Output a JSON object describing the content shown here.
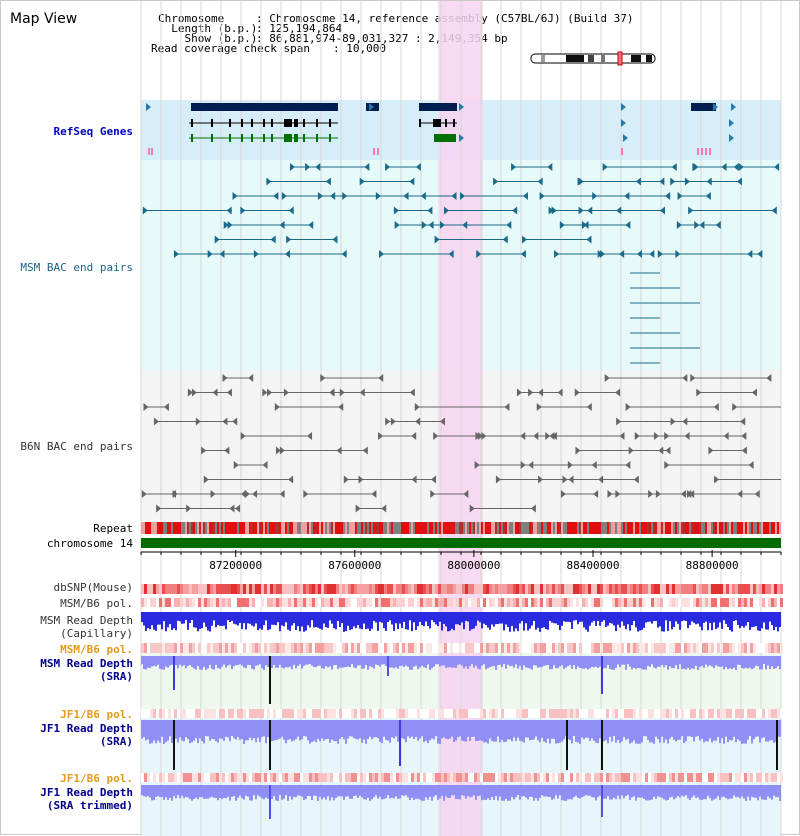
{
  "header": {
    "title": "Map View",
    "chromosome_key": "Chromosome     ",
    "chromosome_val": ": Chromosome 14, reference assembly (C57BL/6J) (Build 37)",
    "length_key": "  Length (b.p.)",
    "length_val": ": 125,194,864",
    "show_key": "    Show (b.p.)",
    "show_val": ": 86,881,974-89,031,327 : 2,149,354 bp",
    "span_key": "Read coverage check span",
    "span_val": ": 10,000"
  },
  "tracks": {
    "refseq": "RefSeq Genes",
    "msm_bac": "MSM BAC end pairs",
    "b6n_bac": "B6N BAC end pairs",
    "repeat": "Repeat",
    "chromosome": "chromosome 14",
    "dbsnp": "dbSNP(Mouse)",
    "msm_b6_pol": "MSM/B6 pol.",
    "msm_depth_cap_1": "MSM Read Depth",
    "msm_depth_cap_2": "(Capillary)",
    "msm_b6_pol_2": "MSM/B6 pol.",
    "msm_depth_sra_1": "MSM Read Depth",
    "msm_depth_sra_2": "(SRA)",
    "jf1_b6_pol": "JF1/B6 pol.",
    "jf1_depth_sra_1": "JF1 Read Depth",
    "jf1_depth_sra_2": "(SRA)",
    "jf1_b6_pol_2": "JF1/B6 pol.",
    "jf1_depth_trim_1": "JF1 Read Depth",
    "jf1_depth_trim_2": "(SRA trimmed)"
  },
  "axis": {
    "ticks": [
      "87200000",
      "87600000",
      "88000000",
      "88400000",
      "88800000"
    ],
    "tick_values": [
      87200000,
      87600000,
      88000000,
      88400000,
      88800000
    ],
    "range": [
      86881974,
      89031327
    ]
  },
  "highlight": {
    "start": 87880000,
    "end": 88030000
  },
  "colors": {
    "refseq_bg": "#d6eefa",
    "msm_bg": "#e6fafa",
    "b6n_bg": "#f4f4f4",
    "highlight": "#f7d4f0",
    "chrom_green": "#006b00",
    "gene_dark": "#001e50",
    "gene_green": "#007000",
    "bac_teal": "#1a6b8a",
    "bac_gray": "#666666",
    "depth_blue": "#2a2ae0",
    "depth_light": "#8f8ff5"
  }
}
